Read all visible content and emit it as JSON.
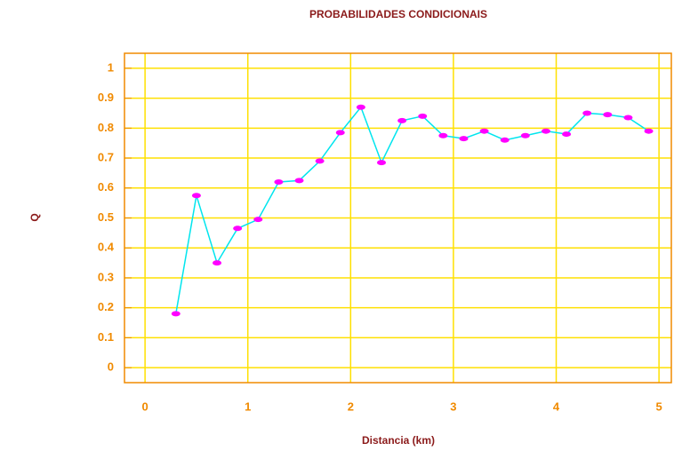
{
  "chart_data": {
    "type": "line",
    "title": "PROBABILIDADES CONDICIONAIS",
    "x_label": "Distancia (km)",
    "y_label": "Q",
    "x": [
      0.3,
      0.5,
      0.7,
      0.9,
      1.1,
      1.3,
      1.5,
      1.7,
      1.9,
      2.1,
      2.3,
      2.5,
      2.7,
      2.9,
      3.1,
      3.3,
      3.5,
      3.7,
      3.9,
      4.1,
      4.3,
      4.5,
      4.7,
      4.9
    ],
    "series": [
      {
        "name": "Q",
        "color": "#00e5ee",
        "marker_color": "#ff00ff",
        "values": [
          0.18,
          0.575,
          0.35,
          0.465,
          0.495,
          0.62,
          0.625,
          0.69,
          0.785,
          0.87,
          0.685,
          0.825,
          0.84,
          0.775,
          0.765,
          0.79,
          0.76,
          0.775,
          0.79,
          0.78,
          0.85,
          0.845,
          0.835,
          0.79
        ]
      }
    ],
    "xlim": [
      -0.2,
      5.12
    ],
    "ylim": [
      -0.05,
      1.05
    ],
    "xticks": [
      0,
      1,
      2,
      3,
      4,
      5
    ],
    "yticks": [
      0,
      0.1,
      0.2,
      0.3,
      0.4,
      0.5,
      0.6,
      0.7,
      0.8,
      0.9,
      1
    ],
    "grid": true,
    "grid_color": "#ffe000",
    "frame_color": "#f08a00"
  }
}
